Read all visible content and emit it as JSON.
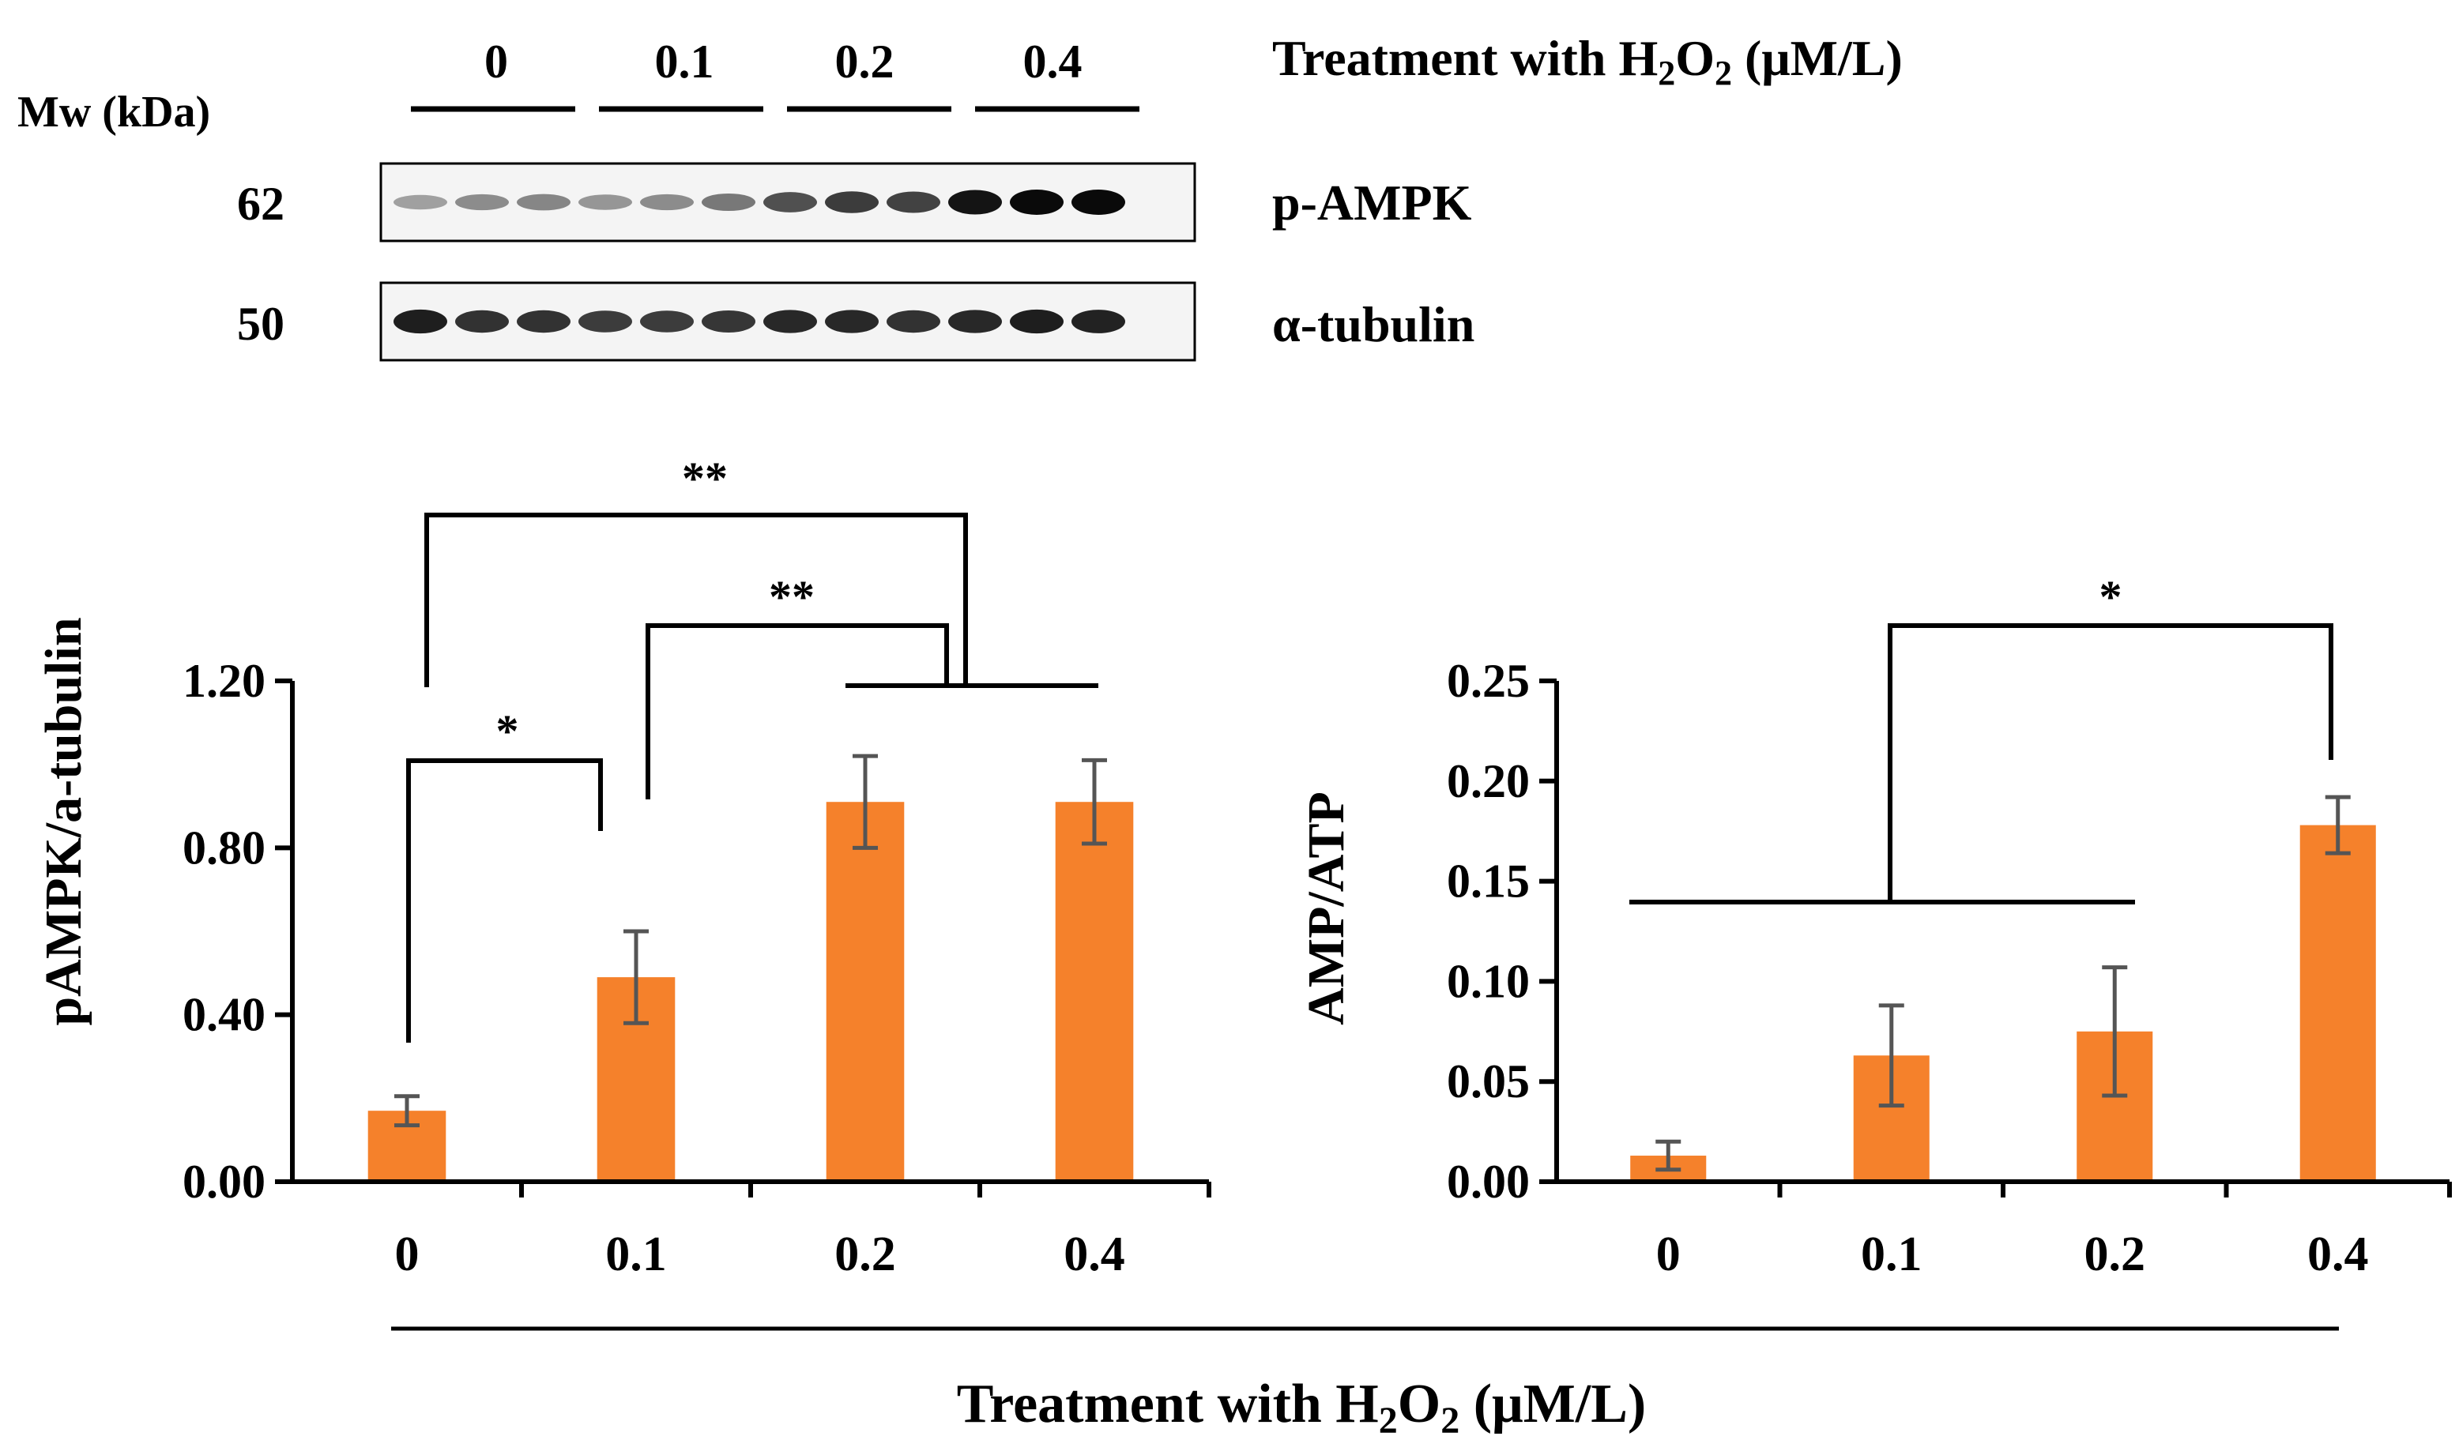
{
  "figure": {
    "treatment_label": {
      "main": "Treatment with H",
      "sub1": "2",
      "mid": "O",
      "sub2": "2",
      "end": " (μM/L)"
    }
  },
  "blot": {
    "mw_header": "Mw (kDa)",
    "lanes": [
      "0",
      "0.1",
      "0.2",
      "0.4"
    ],
    "rows": [
      {
        "mw": "62",
        "protein": "p-AMPK",
        "band_intensity": [
          0.25,
          0.35,
          0.38,
          0.3,
          0.35,
          0.45,
          0.65,
          0.75,
          0.72,
          0.95,
          1.0,
          1.0
        ]
      },
      {
        "mw": "50",
        "protein": "α-tubulin",
        "band_intensity": [
          0.9,
          0.8,
          0.8,
          0.75,
          0.75,
          0.78,
          0.85,
          0.85,
          0.8,
          0.85,
          0.9,
          0.88
        ]
      }
    ]
  },
  "colors": {
    "bar": "#F5812B",
    "errorbar": "#555555",
    "ink": "#000000"
  },
  "chart_data": [
    {
      "type": "bar",
      "categories": [
        "0",
        "0.1",
        "0.2",
        "0.4"
      ],
      "values": [
        0.17,
        0.49,
        0.91,
        0.91
      ],
      "errors": [
        0.035,
        0.11,
        0.11,
        0.1
      ],
      "ylabel": "pAMPK/a-tubulin",
      "ylim": [
        0,
        1.2
      ],
      "yticks": [
        "0.00",
        "0.40",
        "0.80",
        "1.20"
      ],
      "significance": [
        {
          "from": "0",
          "to": "0.1",
          "label": "*"
        },
        {
          "from": "0.1",
          "to": [
            "0.2",
            "0.4"
          ],
          "label": "**"
        },
        {
          "from": "0",
          "to": [
            "0.2",
            "0.4"
          ],
          "label": "**"
        }
      ]
    },
    {
      "type": "bar",
      "categories": [
        "0",
        "0.1",
        "0.2",
        "0.4"
      ],
      "values": [
        0.013,
        0.063,
        0.075,
        0.178
      ],
      "errors": [
        0.007,
        0.025,
        0.032,
        0.014
      ],
      "ylabel": "AMP/ATP",
      "ylim": [
        0,
        0.25
      ],
      "yticks": [
        "0.00",
        "0.05",
        "0.10",
        "0.15",
        "0.20",
        "0.25"
      ],
      "significance": [
        {
          "from": [
            "0",
            "0.1",
            "0.2"
          ],
          "to": "0.4",
          "label": "*"
        }
      ]
    }
  ]
}
